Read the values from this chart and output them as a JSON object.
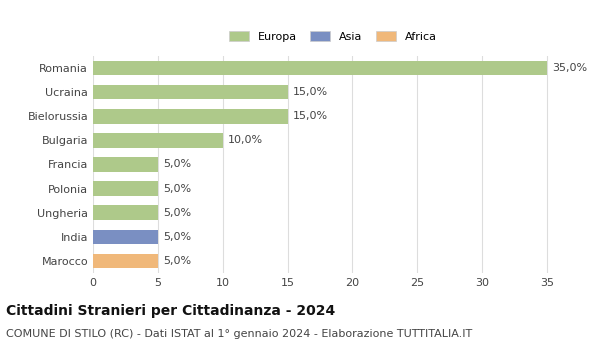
{
  "categories": [
    "Romania",
    "Ucraina",
    "Bielorussia",
    "Bulgaria",
    "Francia",
    "Polonia",
    "Ungheria",
    "India",
    "Marocco"
  ],
  "values": [
    35.0,
    15.0,
    15.0,
    10.0,
    5.0,
    5.0,
    5.0,
    5.0,
    5.0
  ],
  "colors": [
    "#aec98a",
    "#aec98a",
    "#aec98a",
    "#aec98a",
    "#aec98a",
    "#aec98a",
    "#aec98a",
    "#7a8fc2",
    "#f0b87a"
  ],
  "legend_labels": [
    "Europa",
    "Asia",
    "Africa"
  ],
  "legend_colors": [
    "#aec98a",
    "#7a8fc2",
    "#f0b87a"
  ],
  "xlim": [
    0,
    37
  ],
  "xticks": [
    0,
    5,
    10,
    15,
    20,
    25,
    30,
    35
  ],
  "title": "Cittadini Stranieri per Cittadinanza - 2024",
  "subtitle": "COMUNE DI STILO (RC) - Dati ISTAT al 1° gennaio 2024 - Elaborazione TUTTITALIA.IT",
  "title_fontsize": 10,
  "subtitle_fontsize": 8,
  "label_fontsize": 8,
  "tick_fontsize": 8,
  "background_color": "#ffffff",
  "grid_color": "#dddddd",
  "bar_height": 0.6
}
